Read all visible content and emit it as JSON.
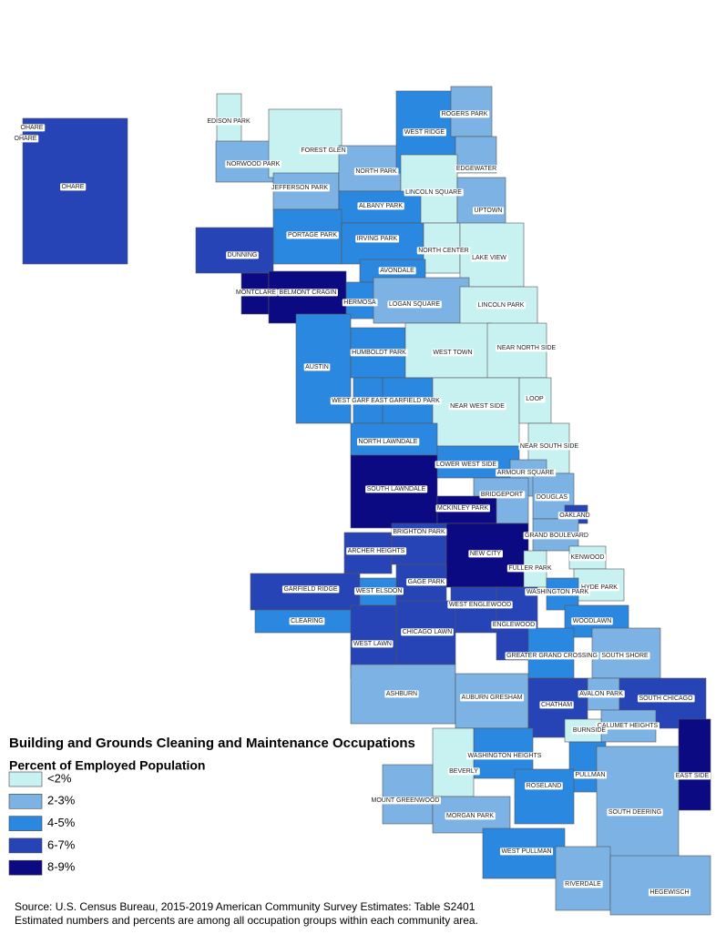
{
  "title": "Building and Grounds Cleaning and Maintenance Occupations",
  "subtitle": "Percent of Employed Population",
  "legend": [
    {
      "label": "<2%",
      "color": "#c8f1f1"
    },
    {
      "label": "2-3%",
      "color": "#7cb2e4"
    },
    {
      "label": "4-5%",
      "color": "#2b88e0"
    },
    {
      "label": "6-7%",
      "color": "#2644b6"
    },
    {
      "label": "8-9%",
      "color": "#0b0a82"
    }
  ],
  "source": [
    "Source: U.S. Census Bureau, 2015-2019 American Community Survey Estimates: Table S2401",
    "Estimated numbers and percents are among all occupation groups within each community area."
  ],
  "areas": [
    {
      "name": "OHARE",
      "color": "#2644b6"
    },
    {
      "name": "OHARE",
      "color": "#2644b6"
    },
    {
      "name": "OHARE",
      "color": "#2644b6"
    },
    {
      "name": "EDISON PARK",
      "color": "#c8f1f1"
    },
    {
      "name": "NORWOOD PARK",
      "color": "#7cb2e4"
    },
    {
      "name": "FOREST GLEN",
      "color": "#c8f1f1"
    },
    {
      "name": "JEFFERSON PARK",
      "color": "#7cb2e4"
    },
    {
      "name": "NORTH PARK",
      "color": "#7cb2e4"
    },
    {
      "name": "WEST RIDGE",
      "color": "#2b88e0"
    },
    {
      "name": "ROGERS PARK",
      "color": "#7cb2e4"
    },
    {
      "name": "EDGEWATER",
      "color": "#7cb2e4"
    },
    {
      "name": "LINCOLN SQUARE",
      "color": "#c8f1f1"
    },
    {
      "name": "UPTOWN",
      "color": "#7cb2e4"
    },
    {
      "name": "ALBANY PARK",
      "color": "#2b88e0"
    },
    {
      "name": "PORTAGE PARK",
      "color": "#2b88e0"
    },
    {
      "name": "IRVING PARK",
      "color": "#2b88e0"
    },
    {
      "name": "DUNNING",
      "color": "#2644b6"
    },
    {
      "name": "NORTH CENTER",
      "color": "#c8f1f1"
    },
    {
      "name": "LAKE VIEW",
      "color": "#c8f1f1"
    },
    {
      "name": "AVONDALE",
      "color": "#2b88e0"
    },
    {
      "name": "MONTCLARE",
      "color": "#0b0a82"
    },
    {
      "name": "BELMONT CRAGIN",
      "color": "#0b0a82"
    },
    {
      "name": "HERMOSA",
      "color": "#2b88e0"
    },
    {
      "name": "LOGAN SQUARE",
      "color": "#7cb2e4"
    },
    {
      "name": "LINCOLN PARK",
      "color": "#c8f1f1"
    },
    {
      "name": "AUSTIN",
      "color": "#2b88e0"
    },
    {
      "name": "HUMBOLDT PARK",
      "color": "#2b88e0"
    },
    {
      "name": "WEST TOWN",
      "color": "#c8f1f1"
    },
    {
      "name": "NEAR NORTH SIDE",
      "color": "#c8f1f1"
    },
    {
      "name": "WEST GARFIELD PARK",
      "color": "#2b88e0"
    },
    {
      "name": "EAST GARFIELD PARK",
      "color": "#2b88e0"
    },
    {
      "name": "NEAR WEST SIDE",
      "color": "#c8f1f1"
    },
    {
      "name": "LOOP",
      "color": "#c8f1f1"
    },
    {
      "name": "NORTH LAWNDALE",
      "color": "#2b88e0"
    },
    {
      "name": "NEAR SOUTH SIDE",
      "color": "#c8f1f1"
    },
    {
      "name": "LOWER WEST SIDE",
      "color": "#2b88e0"
    },
    {
      "name": "ARMOUR SQUARE",
      "color": "#7cb2e4"
    },
    {
      "name": "SOUTH LAWNDALE",
      "color": "#0b0a82"
    },
    {
      "name": "BRIDGEPORT",
      "color": "#7cb2e4"
    },
    {
      "name": "DOUGLAS",
      "color": "#7cb2e4"
    },
    {
      "name": "MCKINLEY PARK",
      "color": "#0b0a82"
    },
    {
      "name": "OAKLAND",
      "color": "#2644b6"
    },
    {
      "name": "BRIGHTON PARK",
      "color": "#2644b6"
    },
    {
      "name": "GRAND BOULEVARD",
      "color": "#7cb2e4"
    },
    {
      "name": "ARCHER HEIGHTS",
      "color": "#2644b6"
    },
    {
      "name": "NEW CITY",
      "color": "#0b0a82"
    },
    {
      "name": "KENWOOD",
      "color": "#c8f1f1"
    },
    {
      "name": "FULLER PARK",
      "color": "#c8f1f1"
    },
    {
      "name": "HYDE PARK",
      "color": "#c8f1f1"
    },
    {
      "name": "GARFIELD RIDGE",
      "color": "#2644b6"
    },
    {
      "name": "GAGE PARK",
      "color": "#2644b6"
    },
    {
      "name": "WEST ELSDON",
      "color": "#2b88e0"
    },
    {
      "name": "WASHINGTON PARK",
      "color": "#2b88e0"
    },
    {
      "name": "WEST ENGLEWOOD",
      "color": "#2644b6"
    },
    {
      "name": "CLEARING",
      "color": "#2b88e0"
    },
    {
      "name": "ENGLEWOOD",
      "color": "#2644b6"
    },
    {
      "name": "WOODLAWN",
      "color": "#2b88e0"
    },
    {
      "name": "CHICAGO LAWN",
      "color": "#2644b6"
    },
    {
      "name": "WEST LAWN",
      "color": "#2644b6"
    },
    {
      "name": "GREATER GRAND CROSSING",
      "color": "#2b88e0"
    },
    {
      "name": "SOUTH SHORE",
      "color": "#7cb2e4"
    },
    {
      "name": "ASHBURN",
      "color": "#7cb2e4"
    },
    {
      "name": "AUBURN GRESHAM",
      "color": "#7cb2e4"
    },
    {
      "name": "AVALON PARK",
      "color": "#7cb2e4"
    },
    {
      "name": "CHATHAM",
      "color": "#2644b6"
    },
    {
      "name": "SOUTH CHICAGO",
      "color": "#2644b6"
    },
    {
      "name": "CALUMET HEIGHTS",
      "color": "#7cb2e4"
    },
    {
      "name": "BURNSIDE",
      "color": "#c8f1f1"
    },
    {
      "name": "WASHINGTON HEIGHTS",
      "color": "#2b88e0"
    },
    {
      "name": "BEVERLY",
      "color": "#c8f1f1"
    },
    {
      "name": "EAST SIDE",
      "color": "#0b0a82"
    },
    {
      "name": "PULLMAN",
      "color": "#2b88e0"
    },
    {
      "name": "ROSELAND",
      "color": "#2b88e0"
    },
    {
      "name": "MOUNT GREENWOOD",
      "color": "#7cb2e4"
    },
    {
      "name": "SOUTH DEERING",
      "color": "#7cb2e4"
    },
    {
      "name": "MORGAN PARK",
      "color": "#7cb2e4"
    },
    {
      "name": "WEST PULLMAN",
      "color": "#2b88e0"
    },
    {
      "name": "RIVERDALE",
      "color": "#7cb2e4"
    },
    {
      "name": "HEGEWISCH",
      "color": "#7cb2e4"
    }
  ]
}
